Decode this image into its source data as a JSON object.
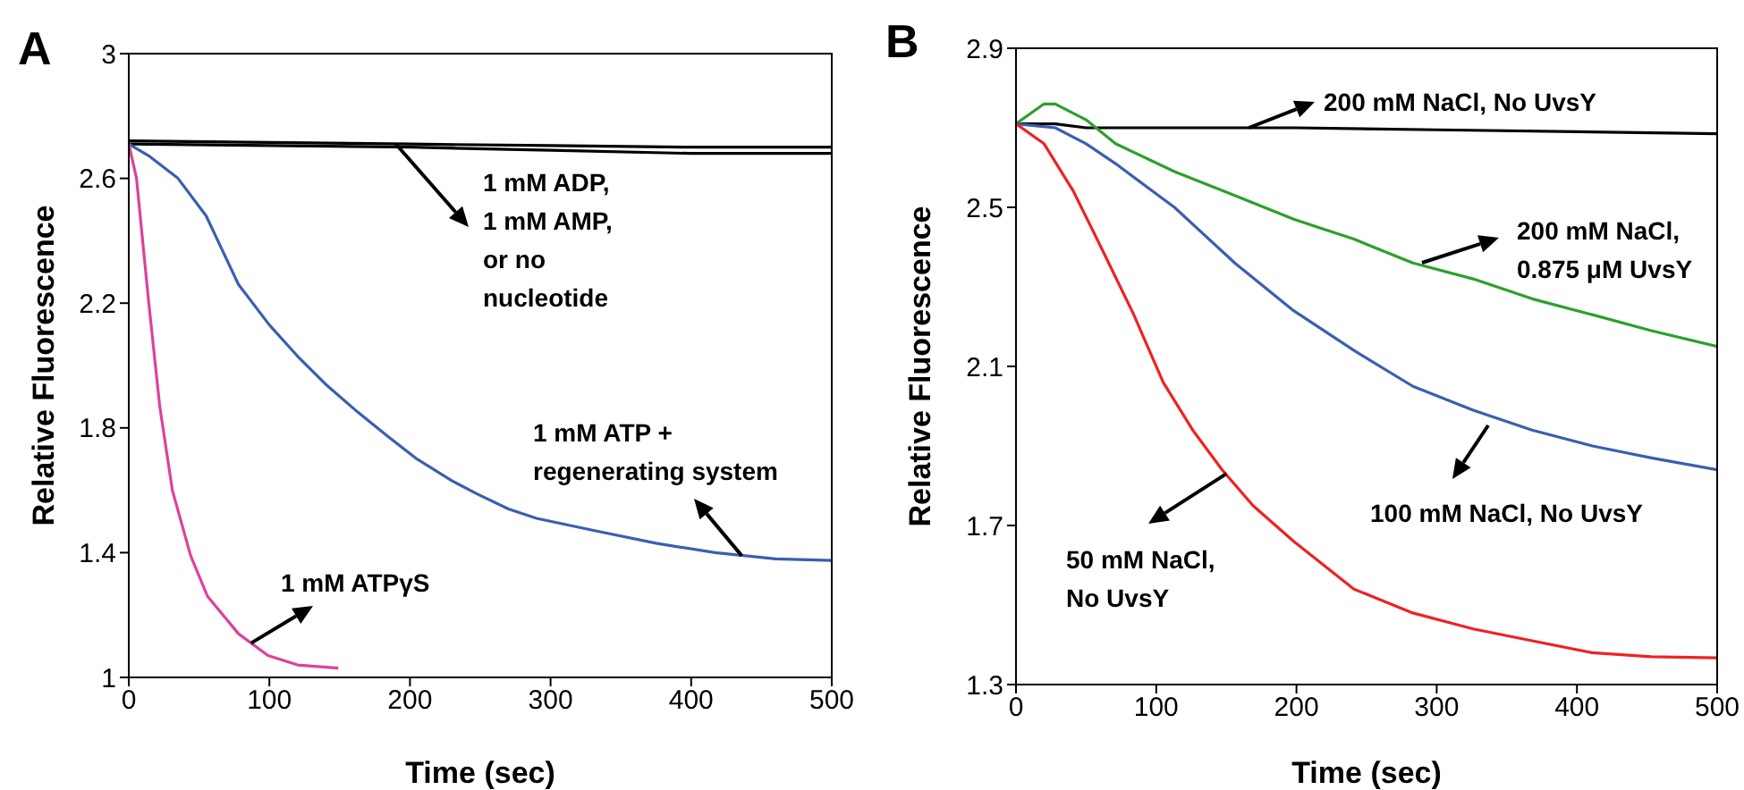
{
  "chart_data": [
    {
      "type": "line",
      "title": "A",
      "xlabel": "Time (sec)",
      "ylabel": "Relative Fluorescence",
      "xlim": [
        0,
        500
      ],
      "ylim": [
        1,
        3
      ],
      "xticks": [
        0,
        100,
        200,
        300,
        400,
        500
      ],
      "yticks": [
        1,
        1.4,
        1.8,
        2.2,
        2.6,
        3
      ],
      "series": [
        {
          "color": "#000000",
          "x": [
            0,
            100,
            200,
            300,
            400,
            500
          ],
          "values": [
            2.72,
            2.715,
            2.71,
            2.705,
            2.7,
            2.7
          ]
        },
        {
          "color": "#000000",
          "x": [
            0,
            100,
            200,
            300,
            400,
            500
          ],
          "values": [
            2.71,
            2.705,
            2.7,
            2.69,
            2.68,
            2.68
          ]
        },
        {
          "color": "#3a5fb0",
          "x": [
            0,
            15,
            35,
            55,
            78,
            100,
            120,
            140,
            163,
            185,
            205,
            230,
            247,
            270,
            290,
            332,
            375,
            417,
            460,
            500
          ],
          "values": [
            2.71,
            2.67,
            2.6,
            2.48,
            2.26,
            2.13,
            2.03,
            1.94,
            1.85,
            1.77,
            1.7,
            1.63,
            1.59,
            1.54,
            1.51,
            1.47,
            1.43,
            1.4,
            1.38,
            1.375
          ]
        },
        {
          "color": "#e0409a",
          "x": [
            0,
            5.5,
            14,
            22,
            31,
            44,
            56,
            78,
            99,
            120,
            149
          ],
          "values": [
            2.71,
            2.6,
            2.21,
            1.87,
            1.6,
            1.39,
            1.26,
            1.14,
            1.07,
            1.04,
            1.03
          ]
        }
      ],
      "annotations": [
        {
          "text": "1 mM ADP, 1 mM AMP, or no nucleotide",
          "x": 190,
          "y": 2.71
        },
        {
          "text": "1 mM ATP + regenerating system",
          "x": 436,
          "y": 1.39
        },
        {
          "text": "1 mM ATPγS",
          "x": 87,
          "y": 1.11
        }
      ]
    },
    {
      "type": "line",
      "title": "B",
      "xlabel": "Time (sec)",
      "ylabel": "Relative Fluorescence",
      "xlim": [
        0,
        500
      ],
      "ylim": [
        1.3,
        2.9
      ],
      "xticks": [
        0,
        100,
        200,
        300,
        400,
        500
      ],
      "yticks": [
        1.3,
        1.7,
        2.1,
        2.5,
        2.9
      ],
      "series": [
        {
          "color": "#000000",
          "x": [
            0,
            28,
            50,
            100,
            200,
            300,
            400,
            500
          ],
          "values": [
            2.71,
            2.71,
            2.7,
            2.7,
            2.7,
            2.695,
            2.69,
            2.685
          ]
        },
        {
          "color": "#2ca02c",
          "x": [
            0,
            20,
            28,
            50,
            71,
            113,
            156,
            198,
            241,
            283,
            326,
            368,
            411,
            453,
            500
          ],
          "values": [
            2.71,
            2.76,
            2.76,
            2.72,
            2.66,
            2.59,
            2.53,
            2.47,
            2.42,
            2.36,
            2.32,
            2.27,
            2.23,
            2.19,
            2.15
          ]
        },
        {
          "color": "#3a5fb0",
          "x": [
            0,
            28,
            50,
            71,
            113,
            156,
            198,
            241,
            283,
            326,
            368,
            411,
            453,
            500
          ],
          "values": [
            2.71,
            2.7,
            2.66,
            2.61,
            2.5,
            2.36,
            2.24,
            2.14,
            2.05,
            1.99,
            1.94,
            1.9,
            1.87,
            1.84
          ]
        },
        {
          "color": "#ee2222",
          "x": [
            0,
            20,
            41,
            62,
            84,
            105,
            126,
            147,
            169,
            198,
            241,
            283,
            326,
            368,
            411,
            453,
            500
          ],
          "values": [
            2.71,
            2.66,
            2.54,
            2.39,
            2.23,
            2.06,
            1.94,
            1.84,
            1.75,
            1.66,
            1.54,
            1.48,
            1.44,
            1.41,
            1.38,
            1.37,
            1.367
          ]
        }
      ],
      "annotations": [
        {
          "text": "200 mM NaCl, No UvsY",
          "x": 166,
          "y": 2.7
        },
        "200 mM NaCl, 0.875 μM UvsY",
        "100 mM NaCl, No UvsY",
        {
          "text": "50 mM NaCl, No UvsY",
          "x": 150,
          "y": 1.83
        }
      ]
    }
  ]
}
